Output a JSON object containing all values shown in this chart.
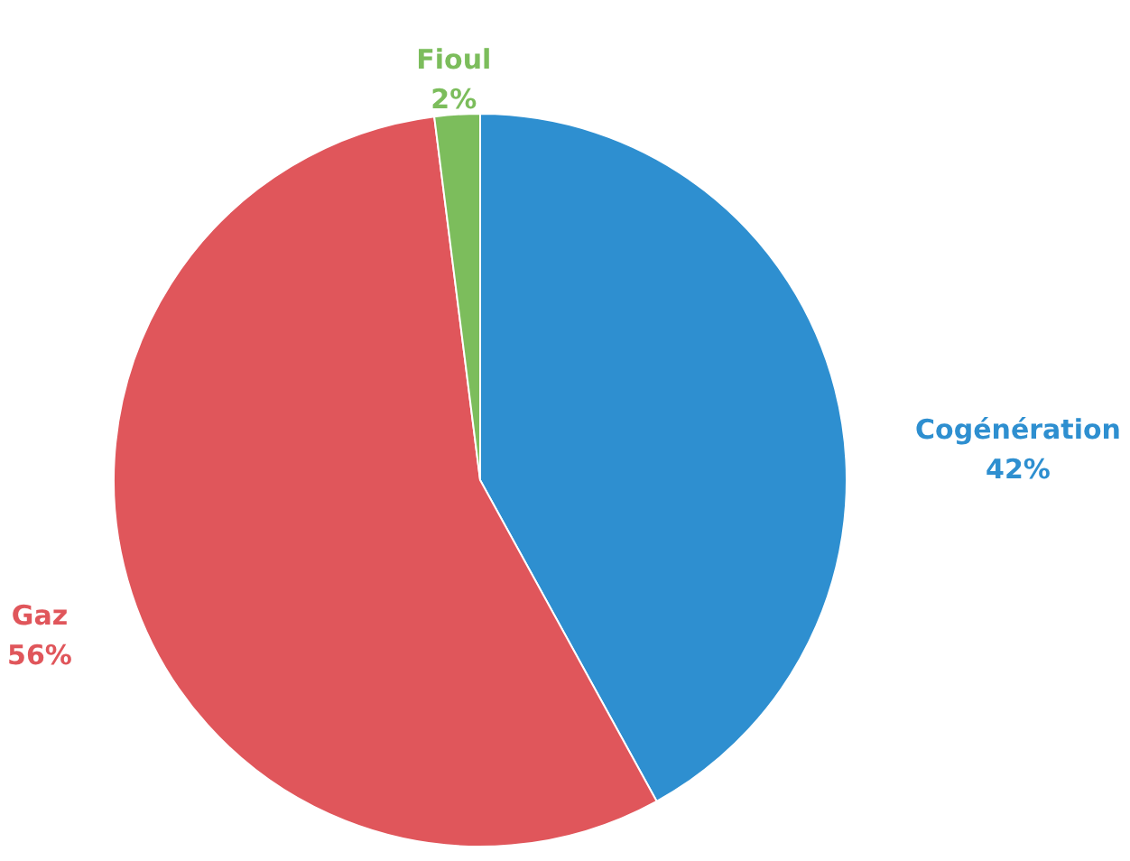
{
  "chart_data": {
    "type": "pie",
    "categories": [
      "Cogénération",
      "Gaz",
      "Fioul"
    ],
    "values": [
      42,
      56,
      2
    ],
    "colors": [
      "#2e8fd0",
      "#e0565b",
      "#7cbd5c"
    ],
    "value_labels": [
      "42%",
      "56%",
      "2%"
    ]
  }
}
